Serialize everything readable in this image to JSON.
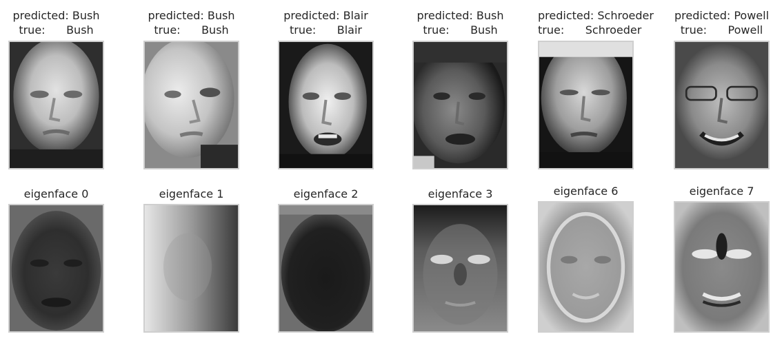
{
  "gallery": {
    "predictions": [
      {
        "predicted_label": "predicted: Bush",
        "true_label": "true:      Bush",
        "image": "face-bush-1"
      },
      {
        "predicted_label": "predicted: Bush",
        "true_label": "true:      Bush",
        "image": "face-bush-2"
      },
      {
        "predicted_label": "predicted: Blair",
        "true_label": "true:      Blair",
        "image": "face-blair"
      },
      {
        "predicted_label": "predicted: Bush",
        "true_label": "true:      Bush",
        "image": "face-bush-3"
      },
      {
        "predicted_label": "predicted: Schroeder",
        "true_label": "true:      Schroeder",
        "image": "face-schroeder"
      },
      {
        "predicted_label": "predicted: Powell",
        "true_label": "true:      Powell",
        "image": "face-powell"
      }
    ],
    "eigenfaces": [
      {
        "label": "eigenface 0",
        "image": "eigenface-0"
      },
      {
        "label": "eigenface 1",
        "image": "eigenface-1"
      },
      {
        "label": "eigenface 2",
        "image": "eigenface-2"
      },
      {
        "label": "eigenface 3",
        "image": "eigenface-3"
      },
      {
        "label": "eigenface 6",
        "image": "eigenface-6"
      },
      {
        "label": "eigenface 7",
        "image": "eigenface-7"
      }
    ]
  }
}
